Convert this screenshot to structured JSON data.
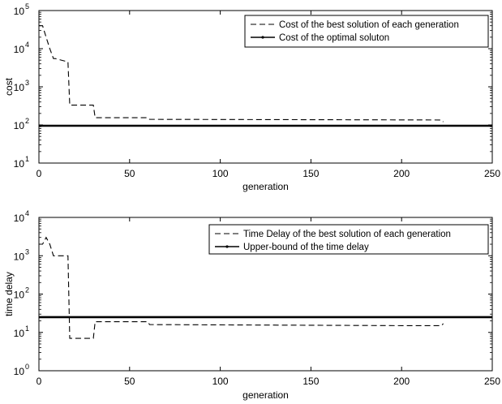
{
  "chart_data": [
    {
      "type": "line",
      "title": "",
      "xlabel": "generation",
      "ylabel": "cost",
      "yscale": "log",
      "xlim": [
        0,
        250
      ],
      "ylim": [
        10,
        100000
      ],
      "grid": false,
      "legend_position": "top-right",
      "xticks": [
        {
          "value": 0,
          "label": "0"
        },
        {
          "value": 50,
          "label": "50"
        },
        {
          "value": 100,
          "label": "100"
        },
        {
          "value": 150,
          "label": "150"
        },
        {
          "value": 200,
          "label": "200"
        },
        {
          "value": 250,
          "label": "250"
        }
      ],
      "yticks": [
        {
          "value": 10,
          "base": "10",
          "exp": "1"
        },
        {
          "value": 100,
          "base": "10",
          "exp": "2"
        },
        {
          "value": 1000,
          "base": "10",
          "exp": "3"
        },
        {
          "value": 10000,
          "base": "10",
          "exp": "4"
        },
        {
          "value": 100000,
          "base": "10",
          "exp": "5"
        }
      ],
      "series": [
        {
          "name": "Cost of the best solution of each generation",
          "style": "dashed",
          "color": "#000000",
          "x": [
            0,
            2,
            4,
            6,
            8,
            9,
            16,
            17,
            30,
            31,
            60,
            61,
            222,
            223
          ],
          "y": [
            40000,
            40000,
            20000,
            10000,
            5500,
            5500,
            4500,
            330,
            330,
            155,
            155,
            140,
            135,
            120
          ]
        },
        {
          "name": "Cost of the optimal soluton",
          "style": "solid",
          "color": "#000000",
          "x": [
            0,
            250
          ],
          "y": [
            95,
            95
          ]
        }
      ]
    },
    {
      "type": "line",
      "title": "",
      "xlabel": "generation",
      "ylabel": "time delay",
      "yscale": "log",
      "xlim": [
        0,
        250
      ],
      "ylim": [
        1,
        10000
      ],
      "grid": false,
      "legend_position": "top-right",
      "xticks": [
        {
          "value": 0,
          "label": "0"
        },
        {
          "value": 50,
          "label": "50"
        },
        {
          "value": 100,
          "label": "100"
        },
        {
          "value": 150,
          "label": "150"
        },
        {
          "value": 200,
          "label": "200"
        },
        {
          "value": 250,
          "label": "250"
        }
      ],
      "yticks": [
        {
          "value": 1,
          "base": "10",
          "exp": "0"
        },
        {
          "value": 10,
          "base": "10",
          "exp": "1"
        },
        {
          "value": 100,
          "base": "10",
          "exp": "2"
        },
        {
          "value": 1000,
          "base": "10",
          "exp": "3"
        },
        {
          "value": 10000,
          "base": "10",
          "exp": "4"
        }
      ],
      "series": [
        {
          "name": "Time Delay of the best solution of each generation",
          "style": "dashed",
          "color": "#000000",
          "x": [
            0,
            2,
            4,
            6,
            8,
            9,
            16,
            17,
            30,
            31,
            60,
            61,
            200,
            222,
            223
          ],
          "y": [
            2000,
            2000,
            3000,
            2000,
            1000,
            1000,
            1000,
            7,
            7,
            19,
            19,
            16,
            15,
            15,
            17
          ]
        },
        {
          "name": "Upper-bound of the time delay",
          "style": "solid",
          "color": "#000000",
          "x": [
            0,
            250
          ],
          "y": [
            25,
            25
          ]
        }
      ]
    }
  ]
}
